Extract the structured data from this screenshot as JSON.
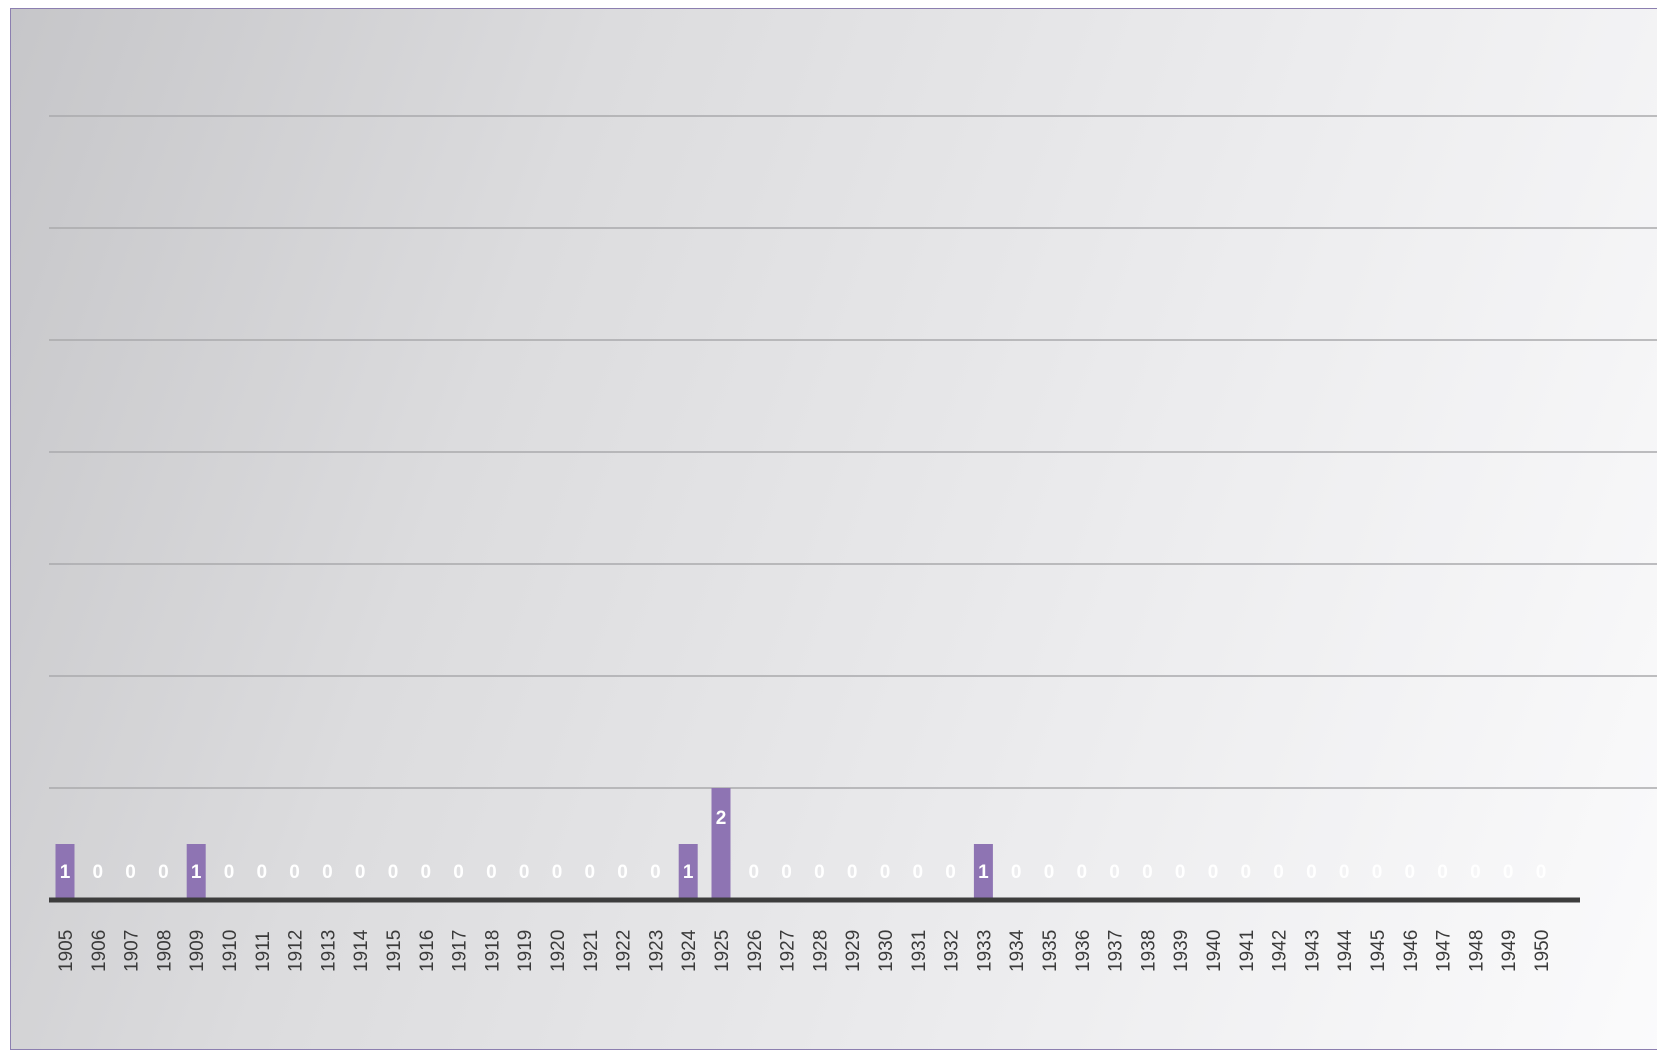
{
  "chart_data": {
    "type": "bar",
    "title": "",
    "xlabel": "",
    "ylabel": "",
    "ylim": [
      0,
      14
    ],
    "grid": true,
    "legend": "none",
    "colors": {
      "bar": "#8e74b3",
      "label": "#ffffff",
      "axis": "#3d3d3d",
      "grid": "#a9a9ac"
    },
    "categories": [
      "1905",
      "1906",
      "1907",
      "1908",
      "1909",
      "1910",
      "1911",
      "1912",
      "1913",
      "1914",
      "1915",
      "1916",
      "1917",
      "1918",
      "1919",
      "1920",
      "1921",
      "1922",
      "1923",
      "1924",
      "1925",
      "1926",
      "1927",
      "1928",
      "1929",
      "1930",
      "1931",
      "1932",
      "1933",
      "1934",
      "1935",
      "1936",
      "1937",
      "1938",
      "1939",
      "1940",
      "1941",
      "1942",
      "1943",
      "1944",
      "1945",
      "1946",
      "1947",
      "1948",
      "1949",
      "1950"
    ],
    "values": [
      1,
      0,
      0,
      0,
      1,
      0,
      0,
      0,
      0,
      0,
      0,
      0,
      0,
      0,
      0,
      0,
      0,
      0,
      0,
      1,
      2,
      0,
      0,
      0,
      0,
      0,
      0,
      0,
      1,
      0,
      0,
      0,
      0,
      0,
      0,
      0,
      0,
      0,
      0,
      0,
      0,
      0,
      0,
      0,
      0,
      0
    ]
  }
}
